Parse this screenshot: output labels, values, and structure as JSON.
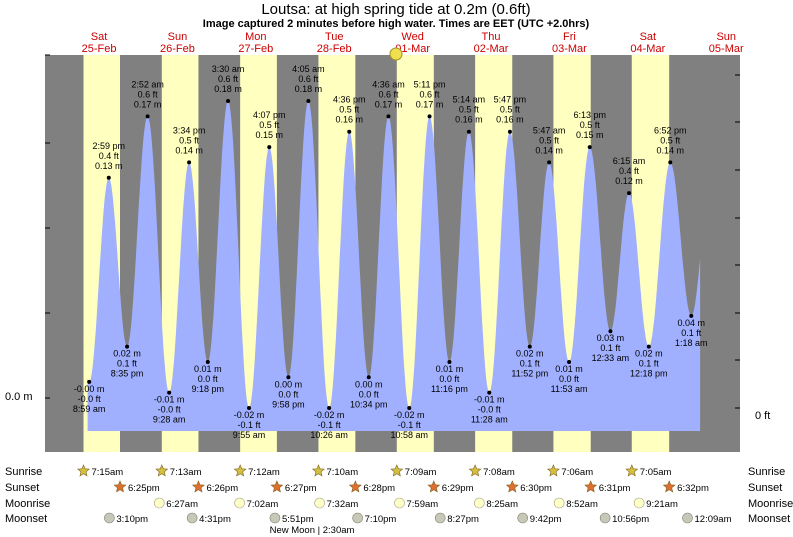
{
  "header": {
    "title": "Loutsa: at high  spring tide at 0.2m (0.6ft)",
    "subtitle": "Image captured 2 minutes before high water. Times are EET (UTC +2.0hrs)"
  },
  "chart_data": {
    "type": "area",
    "y_axis_left": {
      "label": "0.0 m",
      "unit": "m"
    },
    "y_axis_right": {
      "label": "0 ft",
      "unit": "ft"
    },
    "ylim_m": [
      -0.035,
      0.21
    ],
    "days": [
      {
        "dow": "Sat",
        "date": "25-Feb"
      },
      {
        "dow": "Sun",
        "date": "26-Feb"
      },
      {
        "dow": "Mon",
        "date": "27-Feb"
      },
      {
        "dow": "Tue",
        "date": "28-Feb"
      },
      {
        "dow": "Wed",
        "date": "01-Mar"
      },
      {
        "dow": "Thu",
        "date": "02-Mar"
      },
      {
        "dow": "Fri",
        "date": "03-Mar"
      },
      {
        "dow": "Sat",
        "date": "04-Mar"
      },
      {
        "dow": "Sun",
        "date": "05-Mar"
      }
    ],
    "tides": [
      {
        "time": "8:59 am",
        "m": "-0.00 m",
        "ft": "-0.0 ft",
        "type": "low",
        "value": -0.003
      },
      {
        "time": "2:59 pm",
        "m": "0.13 m",
        "ft": "0.4 ft",
        "type": "high",
        "value": 0.13
      },
      {
        "time": "8:35 pm",
        "m": "0.02 m",
        "ft": "0.1 ft",
        "type": "low",
        "value": 0.02
      },
      {
        "time": "2:52 am",
        "m": "0.17 m",
        "ft": "0.6 ft",
        "type": "high",
        "value": 0.17
      },
      {
        "time": "9:28 am",
        "m": "-0.01 m",
        "ft": "-0.0 ft",
        "type": "low",
        "value": -0.01
      },
      {
        "time": "3:34 pm",
        "m": "0.14 m",
        "ft": "0.5 ft",
        "type": "high",
        "value": 0.14
      },
      {
        "time": "9:18 pm",
        "m": "0.01 m",
        "ft": "0.0 ft",
        "type": "low",
        "value": 0.01
      },
      {
        "time": "3:30 am",
        "m": "0.18 m",
        "ft": "0.6 ft",
        "type": "high",
        "value": 0.18
      },
      {
        "time": "9:55 am",
        "m": "-0.02 m",
        "ft": "-0.1 ft",
        "type": "low",
        "value": -0.02
      },
      {
        "time": "4:07 pm",
        "m": "0.15 m",
        "ft": "0.5 ft",
        "type": "high",
        "value": 0.15
      },
      {
        "time": "9:58 pm",
        "m": "0.00 m",
        "ft": "0.0 ft",
        "type": "low",
        "value": 0.0
      },
      {
        "time": "4:05 am",
        "m": "0.18 m",
        "ft": "0.6 ft",
        "type": "high",
        "value": 0.18
      },
      {
        "time": "10:26 am",
        "m": "-0.02 m",
        "ft": "-0.1 ft",
        "type": "low",
        "value": -0.02
      },
      {
        "time": "4:36 pm",
        "m": "0.16 m",
        "ft": "0.5 ft",
        "type": "high",
        "value": 0.16
      },
      {
        "time": "10:34 pm",
        "m": "0.00 m",
        "ft": "0.0 ft",
        "type": "low",
        "value": 0.0
      },
      {
        "time": "4:36 am",
        "m": "0.17 m",
        "ft": "0.6 ft",
        "type": "high",
        "value": 0.17
      },
      {
        "time": "10:58 am",
        "m": "-0.02 m",
        "ft": "-0.1 ft",
        "type": "low",
        "value": -0.02
      },
      {
        "time": "5:11 pm",
        "m": "0.17 m",
        "ft": "0.6 ft",
        "type": "high",
        "value": 0.17
      },
      {
        "time": "11:16 pm",
        "m": "0.01 m",
        "ft": "0.0 ft",
        "type": "low",
        "value": 0.01
      },
      {
        "time": "5:14 am",
        "m": "0.16 m",
        "ft": "0.5 ft",
        "type": "high",
        "value": 0.16
      },
      {
        "time": "11:28 am",
        "m": "-0.01 m",
        "ft": "-0.0 ft",
        "type": "low",
        "value": -0.01
      },
      {
        "time": "5:47 pm",
        "m": "0.16 m",
        "ft": "0.5 ft",
        "type": "high",
        "value": 0.16
      },
      {
        "time": "11:52 pm",
        "m": "0.02 m",
        "ft": "0.1 ft",
        "type": "low",
        "value": 0.02
      },
      {
        "time": "5:47 am",
        "m": "0.14 m",
        "ft": "0.5 ft",
        "type": "high",
        "value": 0.14
      },
      {
        "time": "11:53 am",
        "m": "0.01 m",
        "ft": "0.0 ft",
        "type": "low",
        "value": 0.01
      },
      {
        "time": "6:13 pm",
        "m": "0.15 m",
        "ft": "0.5 ft",
        "type": "high",
        "value": 0.15
      },
      {
        "time": "12:33 am",
        "m": "0.03 m",
        "ft": "0.1 ft",
        "type": "low",
        "value": 0.03
      },
      {
        "time": "6:15 am",
        "m": "0.12 m",
        "ft": "0.4 ft",
        "type": "high",
        "value": 0.12
      },
      {
        "time": "12:18 pm",
        "m": "0.02 m",
        "ft": "0.1 ft",
        "type": "low",
        "value": 0.02
      },
      {
        "time": "6:52 pm",
        "m": "0.14 m",
        "ft": "0.5 ft",
        "type": "high",
        "value": 0.14
      },
      {
        "time": "1:18 am",
        "m": "0.04 m",
        "ft": "0.1 ft",
        "type": "low",
        "value": 0.04
      }
    ]
  },
  "rows": {
    "sunrise": {
      "label": "Sunrise",
      "times": [
        "7:15am",
        "7:13am",
        "7:12am",
        "7:10am",
        "7:09am",
        "7:08am",
        "7:06am",
        "7:05am"
      ]
    },
    "sunset": {
      "label": "Sunset",
      "times": [
        "6:25pm",
        "6:26pm",
        "6:27pm",
        "6:28pm",
        "6:29pm",
        "6:30pm",
        "6:31pm",
        "6:32pm"
      ]
    },
    "moonrise": {
      "label": "Moonrise",
      "times": [
        "6:27am",
        "7:02am",
        "7:32am",
        "7:59am",
        "8:25am",
        "8:52am",
        "9:21am"
      ]
    },
    "moonset": {
      "label": "Moonset",
      "times": [
        "3:10pm",
        "4:31pm",
        "5:51pm",
        "7:10pm",
        "8:27pm",
        "9:42pm",
        "10:56pm",
        "12:09am"
      ]
    }
  },
  "new_moon": "New Moon | 2:30am",
  "colors": {
    "night": "#808080",
    "day": "#ffffc0",
    "water": "#a0b0ff",
    "day_label": "#cc0000",
    "sunrise_star": "#d4c040",
    "sunset_star": "#e07030",
    "moonrise": "#ffffc8",
    "moonset": "#c8c8b8"
  }
}
